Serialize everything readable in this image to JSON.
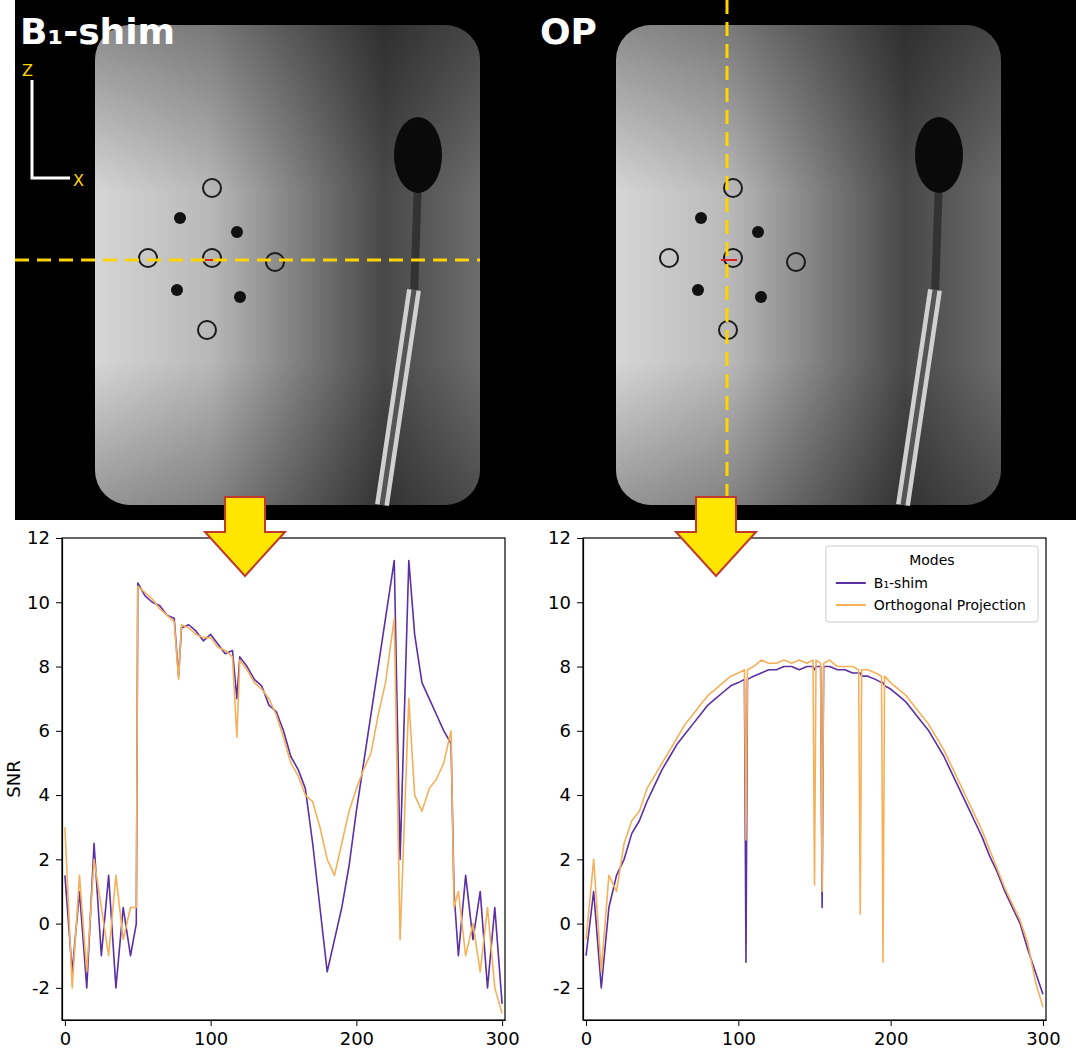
{
  "images": {
    "panels": [
      {
        "title": "B₁-shim"
      },
      {
        "title": "OP"
      }
    ],
    "axis_labels": [
      "Z",
      "X"
    ]
  },
  "chart_data": [
    {
      "type": "line",
      "ylabel": "SNR",
      "x": [
        0,
        5,
        10,
        15,
        20,
        25,
        30,
        35,
        40,
        45,
        49,
        50,
        55,
        60,
        65,
        70,
        75,
        78,
        80,
        85,
        90,
        95,
        100,
        105,
        110,
        115,
        118,
        120,
        125,
        130,
        135,
        140,
        145,
        150,
        155,
        160,
        165,
        170,
        175,
        180,
        185,
        190,
        195,
        200,
        205,
        210,
        215,
        220,
        226,
        230,
        236,
        240,
        245,
        250,
        255,
        260,
        265,
        267,
        270,
        275,
        280,
        285,
        290,
        295,
        300
      ],
      "xlim": [
        -2,
        302
      ],
      "ylim": [
        -3,
        12
      ],
      "xticks": [
        0,
        100,
        200,
        300
      ],
      "yticks": [
        -2,
        0,
        2,
        4,
        6,
        8,
        10,
        12
      ],
      "series": [
        {
          "color": "#5b2fa6",
          "values": [
            1.5,
            -1.5,
            1.0,
            -2.0,
            2.5,
            -1.0,
            1.5,
            -2.0,
            0.5,
            -1.0,
            0.0,
            10.6,
            10.2,
            10.0,
            9.9,
            9.6,
            9.5,
            7.7,
            9.2,
            9.3,
            9.1,
            8.8,
            9.0,
            8.7,
            8.4,
            8.5,
            7.0,
            8.3,
            8.0,
            7.6,
            7.4,
            6.8,
            6.6,
            6.0,
            5.2,
            4.8,
            4.2,
            2.5,
            0.5,
            -1.5,
            -0.5,
            0.5,
            1.8,
            3.5,
            5.0,
            6.5,
            8.0,
            9.5,
            11.3,
            2.0,
            11.3,
            9.0,
            7.5,
            7.0,
            6.5,
            6.0,
            5.6,
            1.0,
            -1.0,
            1.5,
            -0.5,
            1.0,
            -2.0,
            0.5,
            -2.5
          ]
        },
        {
          "color": "#f6b05a",
          "values": [
            3.0,
            -2.0,
            1.5,
            -1.5,
            2.0,
            0.5,
            -1.0,
            1.5,
            -0.5,
            0.5,
            0.5,
            10.5,
            10.3,
            10.1,
            9.8,
            9.6,
            9.4,
            7.6,
            9.3,
            9.2,
            9.0,
            8.9,
            8.9,
            8.6,
            8.5,
            8.3,
            5.8,
            8.2,
            7.9,
            7.5,
            7.3,
            7.0,
            6.5,
            5.8,
            5.0,
            4.6,
            4.0,
            3.8,
            3.0,
            2.0,
            1.5,
            2.5,
            3.5,
            4.2,
            4.8,
            5.3,
            6.5,
            7.5,
            9.5,
            -0.5,
            7.0,
            4.0,
            3.5,
            4.2,
            4.5,
            5.0,
            6.0,
            0.5,
            1.0,
            -1.0,
            0.0,
            -1.5,
            0.5,
            -2.0,
            -2.8
          ]
        }
      ]
    },
    {
      "type": "line",
      "legend": "upper right",
      "legend_title": "Modes",
      "x": [
        0,
        5,
        10,
        15,
        20,
        25,
        30,
        35,
        40,
        45,
        50,
        55,
        60,
        65,
        70,
        75,
        80,
        85,
        90,
        95,
        100,
        104,
        105,
        106,
        110,
        115,
        120,
        125,
        130,
        135,
        140,
        145,
        149,
        150,
        151,
        154,
        155,
        156,
        160,
        165,
        170,
        175,
        179,
        180,
        181,
        185,
        190,
        194,
        195,
        196,
        200,
        205,
        210,
        215,
        220,
        225,
        230,
        235,
        240,
        245,
        250,
        255,
        260,
        265,
        270,
        275,
        280,
        285,
        290,
        295,
        300
      ],
      "xlim": [
        -2,
        302
      ],
      "ylim": [
        -3,
        12
      ],
      "xticks": [
        0,
        100,
        200,
        300
      ],
      "yticks": [
        -2,
        0,
        2,
        4,
        6,
        8,
        10,
        12
      ],
      "series": [
        {
          "name": "B₁-shim",
          "color": "#5b2fa6",
          "values": [
            -1.0,
            1.0,
            -2.0,
            0.5,
            1.5,
            2.0,
            2.8,
            3.2,
            3.8,
            4.3,
            4.8,
            5.2,
            5.6,
            5.9,
            6.2,
            6.5,
            6.8,
            7.0,
            7.2,
            7.4,
            7.5,
            7.6,
            -1.2,
            7.6,
            7.7,
            7.8,
            7.9,
            7.9,
            8.0,
            8.0,
            7.9,
            8.0,
            8.0,
            7.9,
            8.0,
            8.0,
            0.5,
            8.0,
            8.0,
            7.9,
            7.9,
            7.8,
            7.8,
            7.8,
            7.7,
            7.7,
            7.6,
            7.5,
            7.5,
            7.4,
            7.3,
            7.1,
            6.9,
            6.6,
            6.3,
            6.0,
            5.6,
            5.2,
            4.7,
            4.2,
            3.7,
            3.2,
            2.7,
            2.1,
            1.6,
            1.0,
            0.5,
            0.0,
            -0.8,
            -1.5,
            -2.2
          ]
        },
        {
          "name": "Orthogonal Projection",
          "color": "#f6b05a",
          "values": [
            -0.5,
            2.0,
            -1.5,
            1.5,
            1.0,
            2.5,
            3.2,
            3.5,
            4.2,
            4.6,
            5.0,
            5.4,
            5.8,
            6.2,
            6.5,
            6.8,
            7.1,
            7.3,
            7.5,
            7.7,
            7.8,
            7.9,
            2.6,
            7.9,
            8.0,
            8.2,
            8.1,
            8.1,
            8.2,
            8.1,
            8.2,
            8.1,
            8.2,
            1.2,
            8.2,
            8.1,
            1.0,
            8.1,
            8.2,
            8.0,
            8.0,
            8.0,
            7.9,
            0.3,
            7.9,
            7.9,
            7.8,
            7.7,
            -1.2,
            7.7,
            7.5,
            7.3,
            7.1,
            6.8,
            6.5,
            6.2,
            5.8,
            5.4,
            4.9,
            4.4,
            3.9,
            3.4,
            2.9,
            2.3,
            1.7,
            1.1,
            0.6,
            0.1,
            -0.6,
            -1.8,
            -2.6
          ]
        }
      ]
    }
  ]
}
